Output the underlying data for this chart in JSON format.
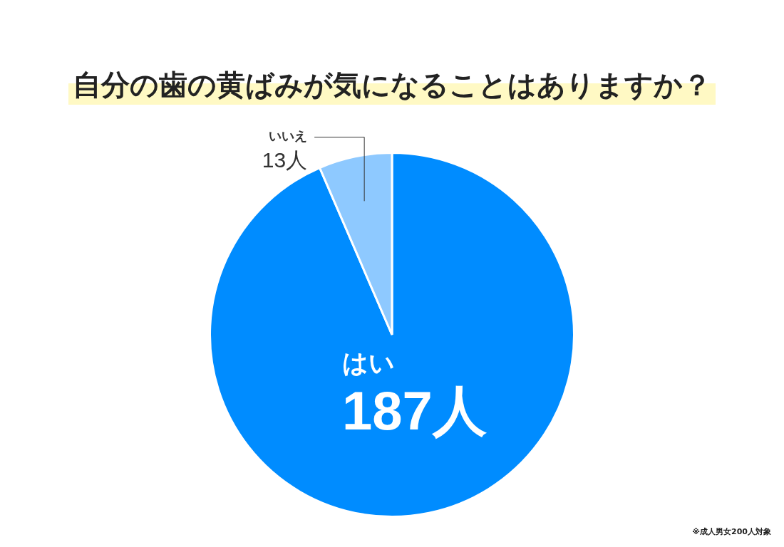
{
  "chart_data": {
    "type": "pie",
    "title": "自分の歯の黄ばみが気になることはありますか？",
    "categories": [
      "はい",
      "いいえ"
    ],
    "values": [
      187,
      13
    ],
    "colors": [
      "#008cff",
      "#8ec9ff"
    ],
    "value_labels": [
      "187人",
      "13人"
    ],
    "annotations": [
      "※成人男女200人対象"
    ]
  }
}
